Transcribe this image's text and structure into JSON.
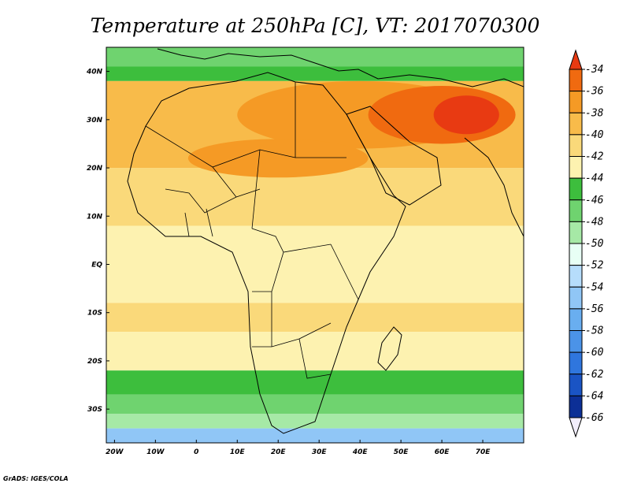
{
  "title": "Temperature at 250hPa [C], VT: 2017070300",
  "credit": "GrADS: IGES/COLA",
  "map": {
    "lon_range": [
      -22,
      80
    ],
    "lat_range": [
      -37,
      45
    ],
    "lon_ticks": [
      {
        "lon": -20,
        "label": "20W"
      },
      {
        "lon": -10,
        "label": "10W"
      },
      {
        "lon": 0,
        "label": "0"
      },
      {
        "lon": 10,
        "label": "10E"
      },
      {
        "lon": 20,
        "label": "20E"
      },
      {
        "lon": 30,
        "label": "30E"
      },
      {
        "lon": 40,
        "label": "40E"
      },
      {
        "lon": 50,
        "label": "50E"
      },
      {
        "lon": 60,
        "label": "60E"
      },
      {
        "lon": 70,
        "label": "70E"
      }
    ],
    "lat_ticks": [
      {
        "lat": 40,
        "label": "40N"
      },
      {
        "lat": 30,
        "label": "30N"
      },
      {
        "lat": 20,
        "label": "20N"
      },
      {
        "lat": 10,
        "label": "10N"
      },
      {
        "lat": 0,
        "label": "EQ"
      },
      {
        "lat": -10,
        "label": "10S"
      },
      {
        "lat": -20,
        "label": "20S"
      },
      {
        "lat": -30,
        "label": "30S"
      }
    ]
  },
  "colorbar": {
    "labels": [
      "-34",
      "-36",
      "-38",
      "-40",
      "-42",
      "-44",
      "-46",
      "-48",
      "-50",
      "-52",
      "-54",
      "-56",
      "-58",
      "-60",
      "-62",
      "-64",
      "-66"
    ],
    "colors": [
      "#e83a12",
      "#f06a10",
      "#f59a25",
      "#f8bb4a",
      "#fad97a",
      "#fdf2b0",
      "#3dbe3d",
      "#6fd36f",
      "#a6e9a6",
      "#e8fff5",
      "#b6ddfb",
      "#90c6f6",
      "#69aef0",
      "#4b93e8",
      "#2f76de",
      "#1a54c4",
      "#0c2f96",
      "#0a1a6e"
    ],
    "colors_note_unused": ""
  },
  "bands": [
    {
      "color": "#6fd36f",
      "top": 45,
      "bottom": 41
    },
    {
      "color": "#3dbe3d",
      "top": 41,
      "bottom": 38
    },
    {
      "color": "#f8bb4a",
      "top": 38,
      "bottom": 20
    },
    {
      "color": "#fad97a",
      "top": 20,
      "bottom": 8
    },
    {
      "color": "#fdf2b0",
      "top": 8,
      "bottom": -8
    },
    {
      "color": "#fad97a",
      "top": -8,
      "bottom": -14
    },
    {
      "color": "#fdf2b0",
      "top": -14,
      "bottom": -22
    },
    {
      "color": "#3dbe3d",
      "top": -22,
      "bottom": -27
    },
    {
      "color": "#6fd36f",
      "top": -27,
      "bottom": -31
    },
    {
      "color": "#a6e9a6",
      "top": -31,
      "bottom": -34
    },
    {
      "color": "#90c6f6",
      "top": -34,
      "bottom": -37
    }
  ],
  "blobs": [
    {
      "color": "#f59a25",
      "lon": 40,
      "lat": 31,
      "rx": 30,
      "ry": 7
    },
    {
      "color": "#f06a10",
      "lon": 60,
      "lat": 31,
      "rx": 18,
      "ry": 6
    },
    {
      "color": "#e83a12",
      "lon": 66,
      "lat": 31,
      "rx": 8,
      "ry": 4
    },
    {
      "color": "#f59a25",
      "lon": 20,
      "lat": 22,
      "rx": 22,
      "ry": 4
    }
  ]
}
